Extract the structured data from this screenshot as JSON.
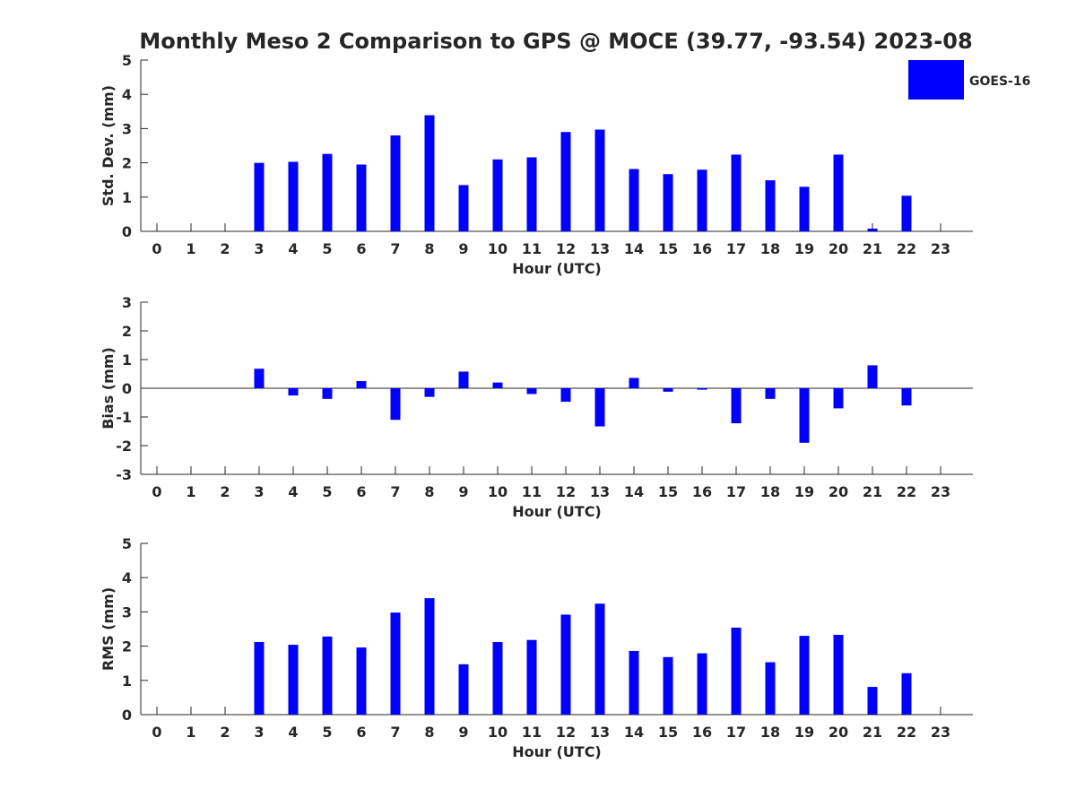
{
  "title": "Monthly Meso 2 Comparison to GPS @ MOCE (39.77, -93.54) 2023-08",
  "legend": {
    "label": "GOES-16",
    "color": "#0000ff",
    "placement": "top-right"
  },
  "chart_data": [
    {
      "type": "bar",
      "name": "stddev",
      "ylabel": "Std. Dev. (mm)",
      "xlabel": "Hour (UTC)",
      "ylim": [
        0,
        5
      ],
      "yticks": [
        "0",
        "1",
        "2",
        "3",
        "4",
        "5"
      ],
      "xticks": [
        "0",
        "1",
        "2",
        "3",
        "4",
        "5",
        "6",
        "7",
        "8",
        "9",
        "10",
        "11",
        "12",
        "13",
        "14",
        "15",
        "16",
        "17",
        "18",
        "19",
        "20",
        "21",
        "22",
        "23"
      ],
      "categories": [
        0,
        1,
        2,
        3,
        4,
        5,
        6,
        7,
        8,
        9,
        10,
        11,
        12,
        13,
        14,
        15,
        16,
        17,
        18,
        19,
        20,
        21,
        22,
        23
      ],
      "series": [
        {
          "name": "GOES-16",
          "color": "#0000ff",
          "values": [
            null,
            null,
            null,
            2.0,
            2.03,
            2.26,
            1.95,
            2.8,
            3.39,
            1.35,
            2.1,
            2.16,
            2.9,
            2.97,
            1.82,
            1.67,
            1.8,
            2.24,
            1.49,
            1.3,
            2.24,
            0.08,
            1.04,
            null
          ]
        }
      ]
    },
    {
      "type": "bar",
      "name": "bias",
      "ylabel": "Bias (mm)",
      "xlabel": "Hour (UTC)",
      "ylim": [
        -3,
        3
      ],
      "yticks": [
        "-3",
        "-2",
        "-1",
        "0",
        "1",
        "2",
        "3"
      ],
      "xticks": [
        "0",
        "1",
        "2",
        "3",
        "4",
        "5",
        "6",
        "7",
        "8",
        "9",
        "10",
        "11",
        "12",
        "13",
        "14",
        "15",
        "16",
        "17",
        "18",
        "19",
        "20",
        "21",
        "22",
        "23"
      ],
      "categories": [
        0,
        1,
        2,
        3,
        4,
        5,
        6,
        7,
        8,
        9,
        10,
        11,
        12,
        13,
        14,
        15,
        16,
        17,
        18,
        19,
        20,
        21,
        22,
        23
      ],
      "zero_line": true,
      "series": [
        {
          "name": "GOES-16",
          "color": "#0000ff",
          "values": [
            null,
            null,
            null,
            0.68,
            -0.25,
            -0.37,
            0.25,
            -1.1,
            -0.3,
            0.58,
            0.2,
            -0.2,
            -0.47,
            -1.33,
            0.36,
            -0.12,
            -0.05,
            -1.22,
            -0.37,
            -1.9,
            -0.7,
            0.8,
            -0.6,
            null
          ]
        }
      ]
    },
    {
      "type": "bar",
      "name": "rms",
      "ylabel": "RMS (mm)",
      "xlabel": "Hour (UTC)",
      "ylim": [
        0,
        5
      ],
      "yticks": [
        "0",
        "1",
        "2",
        "3",
        "4",
        "5"
      ],
      "xticks": [
        "0",
        "1",
        "2",
        "3",
        "4",
        "5",
        "6",
        "7",
        "8",
        "9",
        "10",
        "11",
        "12",
        "13",
        "14",
        "15",
        "16",
        "17",
        "18",
        "19",
        "20",
        "21",
        "22",
        "23"
      ],
      "categories": [
        0,
        1,
        2,
        3,
        4,
        5,
        6,
        7,
        8,
        9,
        10,
        11,
        12,
        13,
        14,
        15,
        16,
        17,
        18,
        19,
        20,
        21,
        22,
        23
      ],
      "series": [
        {
          "name": "GOES-16",
          "color": "#0000ff",
          "values": [
            null,
            null,
            null,
            2.12,
            2.04,
            2.28,
            1.96,
            2.98,
            3.4,
            1.47,
            2.12,
            2.18,
            2.92,
            3.24,
            1.86,
            1.68,
            1.79,
            2.54,
            1.53,
            2.3,
            2.33,
            0.81,
            1.21,
            null
          ]
        }
      ]
    }
  ]
}
